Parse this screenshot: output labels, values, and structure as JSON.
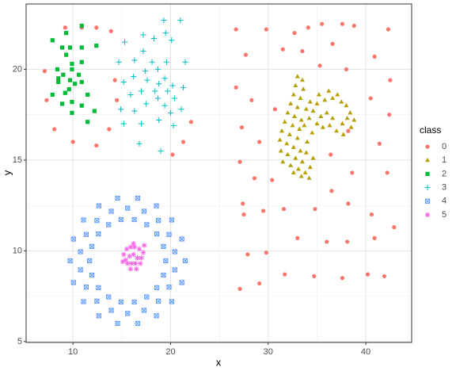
{
  "chart_data": {
    "type": "scatter",
    "x_label": "x",
    "y_label": "y",
    "legend_title": "class",
    "legend_position": "right",
    "grid": true,
    "xlim": [
      5.2,
      44.7
    ],
    "xticks": [
      10,
      20,
      30,
      40
    ],
    "ylim": [
      4.95,
      23.6
    ],
    "yticks": [
      5,
      10,
      15,
      20
    ],
    "series": [
      {
        "name": "0",
        "color": "#F8766D",
        "shape": "circle",
        "x": [
          9.2,
          10.9,
          12.4,
          13.9,
          7.9,
          7.1,
          7.3,
          8.1,
          10,
          12.4,
          13.7,
          14.5,
          14.3,
          20.2,
          21.3,
          22.1,
          26.7,
          29.8,
          32.7,
          34.1,
          35.5,
          37.6,
          38.8,
          42.3,
          27.7,
          31.5,
          33.5,
          36.6,
          40.9,
          35.3,
          38.0,
          26.7,
          28.3,
          30.7,
          40.5,
          42.5,
          42.4,
          27.3,
          29.1,
          36.4,
          38.2,
          41.4,
          27.1,
          28.6,
          30.4,
          38.6,
          42.2,
          36.5,
          27.4,
          27.5,
          29.5,
          31.6,
          34.8,
          38.2,
          40.6,
          33.0,
          36.0,
          38.1,
          40.9,
          42.9,
          29.8,
          27.9,
          31.7,
          34.7,
          37.6,
          40.2,
          41.9,
          29.1,
          27.1
        ],
        "y": [
          22.3,
          22.3,
          22.3,
          22.1,
          21.6,
          19.9,
          18.3,
          16.7,
          16.0,
          15.8,
          16.7,
          18.3,
          19.4,
          15.3,
          16.0,
          17.1,
          22.2,
          22.2,
          22.0,
          22.3,
          22.5,
          22.5,
          22.4,
          22.2,
          20.8,
          21.1,
          21.0,
          21.4,
          20.7,
          20.2,
          20.0,
          19.0,
          18.3,
          17.8,
          18.4,
          19.4,
          17.5,
          16.8,
          16.0,
          15.3,
          16.6,
          15.9,
          14.9,
          14.0,
          13.9,
          14.3,
          14.3,
          13.3,
          12.6,
          12.0,
          12.2,
          12.3,
          12.3,
          12.6,
          12.0,
          10.7,
          10.5,
          10.5,
          10.7,
          11.3,
          9.9,
          9.8,
          8.7,
          8.6,
          8.5,
          8.7,
          8.6,
          8.2,
          7.9
        ]
      },
      {
        "name": "1",
        "color": "#B79F00",
        "shape": "triangle",
        "x": [
          33.0,
          33.5,
          32.8,
          33.6,
          32.6,
          33.3,
          32.3,
          33.0,
          32.0,
          32.7,
          33.4,
          31.7,
          32.5,
          33.2,
          31.4,
          32.2,
          33.0,
          31.2,
          31.9,
          32.6,
          33.3,
          31.3,
          32.0,
          32.8,
          33.5,
          31.5,
          32.3,
          33.1,
          33.8,
          32.6,
          33.4,
          34.2,
          34.3,
          34.6,
          33.9,
          34.0,
          34.5,
          33.7,
          34.2,
          33.9,
          34.6,
          34.3,
          35.0,
          35.2,
          35.8,
          36.2,
          36.6,
          37.1,
          37.5,
          38.0,
          38.4,
          38.8,
          38.1,
          37.6,
          37.0,
          37.7,
          36.6,
          36.0,
          35.4,
          35.0,
          35.6,
          36.3,
          38.5
        ],
        "y": [
          19.6,
          19.4,
          19.1,
          18.9,
          18.6,
          18.4,
          18.1,
          17.9,
          17.6,
          17.4,
          17.2,
          17.1,
          16.9,
          16.7,
          16.6,
          16.4,
          16.2,
          16.1,
          15.9,
          15.7,
          15.5,
          15.5,
          15.3,
          15.1,
          14.9,
          14.9,
          14.7,
          14.5,
          14.3,
          14.3,
          14.1,
          14.0,
          14.6,
          15.1,
          15.4,
          16.0,
          16.5,
          16.9,
          17.3,
          17.8,
          17.7,
          18.2,
          18.1,
          18.6,
          18.3,
          18.8,
          18.4,
          18.6,
          18.2,
          18.0,
          17.6,
          17.2,
          17.3,
          17.0,
          16.6,
          16.4,
          17.3,
          17.6,
          17.4,
          17.0,
          16.8,
          16.9,
          16.8
        ]
      },
      {
        "name": "2",
        "color": "#00BA38",
        "shape": "square",
        "x": [
          7.9,
          9.3,
          10.9,
          8.9,
          9.7,
          10.9,
          12.4,
          8.4,
          9.9,
          10.9,
          9.3,
          9.9,
          9.0,
          10.6,
          9.7,
          8.5,
          10.2,
          10.9,
          7.9,
          9.2,
          11.5,
          9.9,
          8.9,
          10.9,
          9.6,
          12.2,
          11.5,
          9.9,
          8.5
        ],
        "y": [
          21.6,
          22.0,
          22.4,
          21.2,
          21.2,
          21.2,
          21.3,
          20.0,
          20.3,
          20.4,
          20.8,
          20.0,
          19.7,
          19.7,
          19.4,
          19.3,
          19.2,
          19.3,
          18.6,
          18.7,
          18.6,
          18.2,
          18.1,
          18.0,
          18.9,
          17.7,
          17.1,
          17.6,
          19.5
        ]
      },
      {
        "name": "3",
        "color": "#00BFC4",
        "shape": "plus",
        "x": [
          21.0,
          19.3,
          18.3,
          17.2,
          19.5,
          20.1,
          15.3,
          17.2,
          14.7,
          16.3,
          18.1,
          19.6,
          21.5,
          17.4,
          18.7,
          19.4,
          16.2,
          17.6,
          18.8,
          15.2,
          20.2,
          21.3,
          17.0,
          18.4,
          19.7,
          15.9,
          18.7,
          20.4,
          17.5,
          19.4,
          21.1,
          16.3,
          18.8,
          15.2,
          17.0,
          20.3,
          16.8,
          19.0,
          14.9,
          20.0
        ],
        "y": [
          22.7,
          22.7,
          21.7,
          21.9,
          22.0,
          21.6,
          21.5,
          21.0,
          20.4,
          20.5,
          20.4,
          20.4,
          20.4,
          19.9,
          20.0,
          19.5,
          19.6,
          19.4,
          19.2,
          19.3,
          19.1,
          19.0,
          18.8,
          18.8,
          18.8,
          18.6,
          18.4,
          18.4,
          18.1,
          18.0,
          17.8,
          17.7,
          17.2,
          17.0,
          17.0,
          16.9,
          15.9,
          15.5,
          17.8,
          17.6
        ]
      },
      {
        "name": "4",
        "color": "#619CFF",
        "shape": "square-x",
        "x": [
          21.5,
          21.15,
          20.12,
          18.55,
          16.63,
          14.57,
          12.65,
          11.08,
          10.05,
          9.7,
          10.05,
          11.08,
          12.65,
          14.57,
          16.63,
          18.55,
          20.12,
          21.15,
          20.43,
          19.84,
          18.75,
          17.28,
          15.6,
          13.92,
          12.45,
          11.36,
          10.77,
          10.77,
          11.36,
          12.45,
          13.92,
          15.6,
          17.28,
          18.75,
          19.84,
          20.43,
          19.5,
          19.27,
          18.59,
          17.55,
          16.28,
          14.92,
          13.65,
          12.61,
          11.93,
          11.7,
          11.93,
          12.61,
          13.65,
          14.92,
          16.28,
          17.55,
          18.59,
          19.27
        ],
        "y": [
          9.45,
          10.65,
          11.7,
          12.48,
          12.9,
          12.9,
          12.48,
          11.7,
          10.65,
          9.45,
          8.25,
          7.2,
          6.42,
          6.0,
          6.0,
          6.42,
          7.2,
          8.25,
          9.95,
          10.9,
          11.67,
          12.18,
          12.35,
          12.18,
          11.67,
          10.9,
          9.95,
          8.95,
          8.0,
          7.23,
          6.72,
          6.55,
          6.72,
          7.23,
          8.0,
          8.95,
          9.45,
          10.24,
          10.93,
          11.44,
          11.72,
          11.72,
          11.44,
          10.93,
          10.24,
          9.45,
          8.66,
          7.97,
          7.46,
          7.18,
          7.18,
          7.46,
          7.97,
          8.66
        ]
      },
      {
        "name": "5",
        "color": "#F564E3",
        "shape": "asterisk",
        "x": [
          15.2,
          15.5,
          15.9,
          16.3,
          16.8,
          17.2,
          15.4,
          15.8,
          16.2,
          16.6,
          17.0,
          15.6,
          16.0,
          16.4,
          16.9,
          15.9,
          16.5,
          17.3,
          15.1,
          16.2
        ],
        "y": [
          9.8,
          10.1,
          10.2,
          10.2,
          10.1,
          9.9,
          9.5,
          9.7,
          9.8,
          9.6,
          9.6,
          9.3,
          9.3,
          9.3,
          9.3,
          9.0,
          9.0,
          10.3,
          9.4,
          10.4
        ]
      }
    ]
  }
}
